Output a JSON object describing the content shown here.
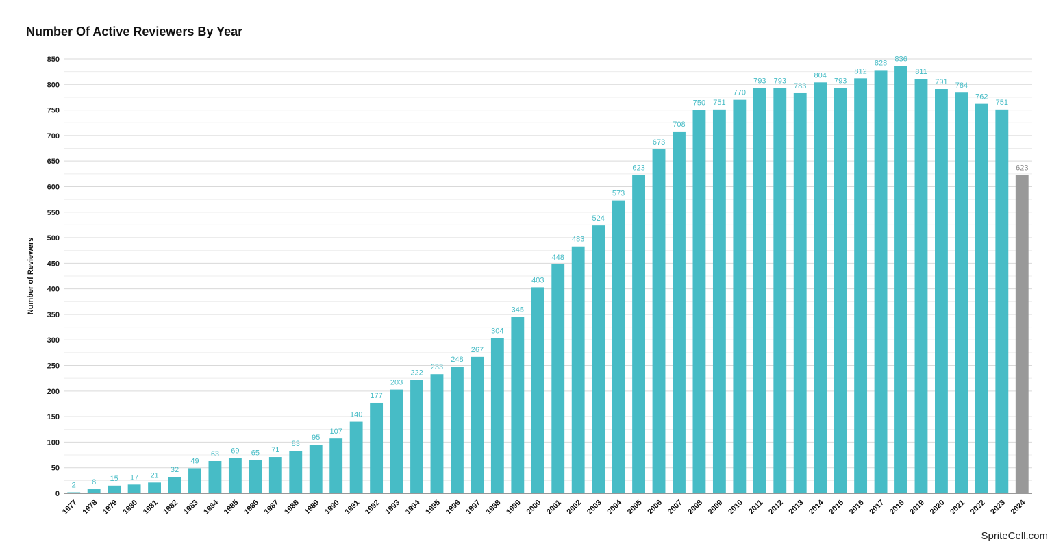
{
  "chart_data": {
    "type": "bar",
    "title": "Number Of Active Reviewers By Year",
    "xlabel": "",
    "ylabel": "Number of Reviewers",
    "ylim": [
      0,
      850
    ],
    "yticks": [
      0,
      50,
      100,
      150,
      200,
      250,
      300,
      350,
      400,
      450,
      500,
      550,
      600,
      650,
      700,
      750,
      800,
      850
    ],
    "grid": true,
    "legend": "none",
    "categories": [
      "1977",
      "1978",
      "1979",
      "1980",
      "1981",
      "1982",
      "1983",
      "1984",
      "1985",
      "1986",
      "1987",
      "1988",
      "1989",
      "1990",
      "1991",
      "1992",
      "1993",
      "1994",
      "1995",
      "1996",
      "1997",
      "1998",
      "1999",
      "2000",
      "2001",
      "2002",
      "2003",
      "2004",
      "2005",
      "2006",
      "2007",
      "2008",
      "2009",
      "2010",
      "2011",
      "2012",
      "2013",
      "2014",
      "2015",
      "2016",
      "2017",
      "2018",
      "2019",
      "2020",
      "2021",
      "2022",
      "2023",
      "2024"
    ],
    "values": [
      2,
      8,
      15,
      17,
      21,
      32,
      49,
      63,
      69,
      65,
      71,
      83,
      95,
      107,
      140,
      177,
      203,
      222,
      233,
      248,
      267,
      304,
      345,
      403,
      448,
      483,
      524,
      573,
      623,
      673,
      708,
      750,
      751,
      770,
      793,
      793,
      783,
      804,
      793,
      812,
      828,
      836,
      811,
      791,
      784,
      762,
      751,
      623
    ],
    "colors": {
      "bar": "#47BCC6",
      "highlight_bar": "#999999",
      "data_label": "#47BCC6",
      "highlight_label": "#888888",
      "gridline": "#d9d9d9"
    },
    "highlight_categories": [
      "2024"
    ]
  },
  "watermark": "SpriteCell.com"
}
